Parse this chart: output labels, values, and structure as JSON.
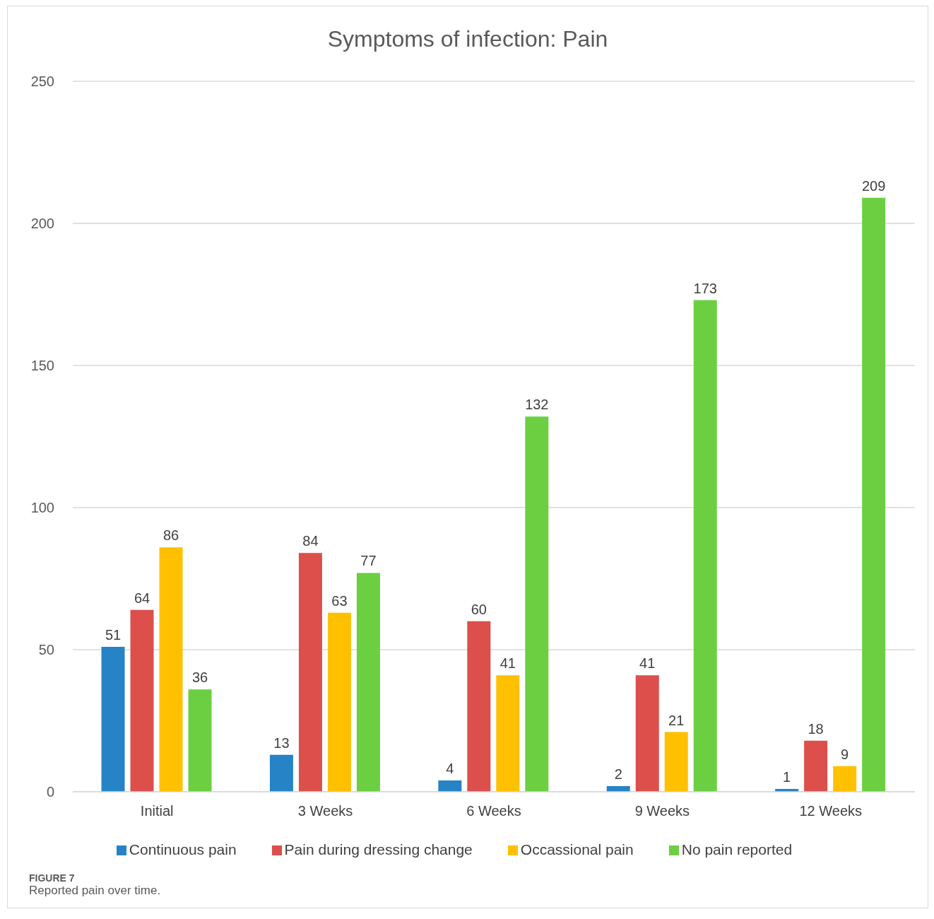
{
  "chart_data": {
    "type": "bar",
    "title": "Symptoms of infection: Pain",
    "categories": [
      "Initial",
      "3 Weeks",
      "6 Weeks",
      "9 Weeks",
      "12 Weeks"
    ],
    "series": [
      {
        "name": "Continuous pain",
        "color": "#2683c6",
        "values": [
          51,
          13,
          4,
          2,
          1
        ]
      },
      {
        "name": "Pain during dressing change",
        "color": "#dc4f4b",
        "values": [
          64,
          84,
          60,
          41,
          18
        ]
      },
      {
        "name": "Occassional pain",
        "color": "#ffc000",
        "values": [
          86,
          63,
          41,
          21,
          9
        ]
      },
      {
        "name": "No pain reported",
        "color": "#6ccf42",
        "values": [
          36,
          77,
          132,
          173,
          209
        ]
      }
    ],
    "ylim": [
      0,
      250
    ],
    "yticks": [
      0,
      50,
      100,
      150,
      200,
      250
    ],
    "grid": "y",
    "legend": "bottom",
    "data_labels": true,
    "annotations": [
      "FIGURE 7",
      "Reported pain over time."
    ]
  }
}
